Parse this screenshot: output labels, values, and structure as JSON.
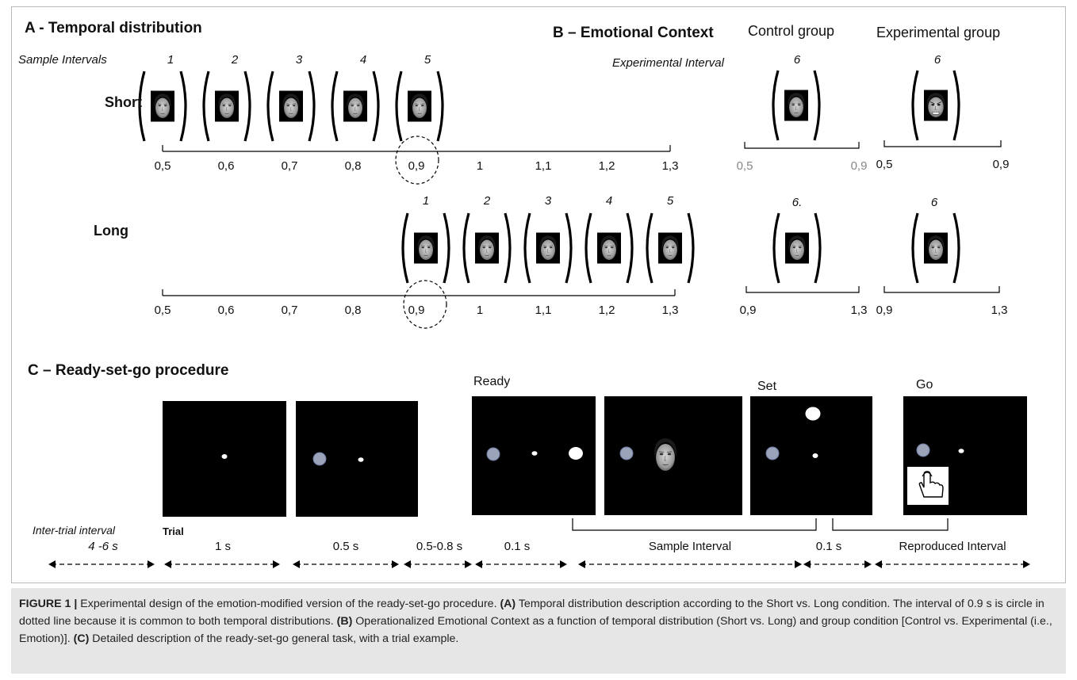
{
  "panelA": {
    "letter": "A",
    "title": " - Temporal distribution",
    "sample_intervals_label": "Sample Intervals",
    "short_label": "Short",
    "long_label": "Long",
    "short_numbers": [
      "1",
      "2",
      "3",
      "4",
      "5"
    ],
    "long_numbers": [
      "1",
      "2",
      "3",
      "4",
      "5"
    ],
    "ticks": [
      "0,5",
      "0,6",
      "0,7",
      "0,8",
      "0,9",
      "1",
      "1,1",
      "1,2",
      "1,3"
    ]
  },
  "panelB": {
    "letter": "B",
    "title": " – Emotional Context",
    "control_label": "Control group",
    "experimental_label": "Experimental group",
    "experimental_interval_label": "Experimental Interval",
    "control_short_num": "6",
    "experimental_short_num": "6",
    "control_long_num": "6.",
    "experimental_long_num": "6",
    "control_short_ticks": [
      "0,5",
      "0,9"
    ],
    "experimental_short_ticks": [
      "0,5",
      "0,9"
    ],
    "control_long_ticks": [
      "0,9",
      "1,3"
    ],
    "experimental_long_ticks": [
      "0,9",
      "1,3"
    ]
  },
  "panelC": {
    "letter": "C",
    "title": " – Ready-set-go procedure",
    "ready_label": "Ready",
    "set_label": "Set",
    "go_label": "Go",
    "iti_label": "Inter-trial interval",
    "trial_label": "Trial",
    "durations": [
      "4 -6 s",
      "1 s",
      "0.5 s",
      "0.5-0.8 s",
      "0.1 s",
      "Sample Interval",
      "0.1 s",
      "Reproduced Interval"
    ]
  },
  "caption": {
    "lead": "FIGURE 1 |",
    "text1": " Experimental design of the emotion-modified version of the ready-set-go procedure. ",
    "a": "(A)",
    "text2": " Temporal distribution description according to the Short vs. Long condition. The interval of 0.9 s is circle in dotted line because it is common to both temporal distributions. ",
    "b": "(B)",
    "text3": " Operationalized Emotional Context as a function of temporal distribution (Short vs. Long) and group condition [Control vs. Experimental (i.e., Emotion)]. ",
    "c": "(C)",
    "text4": " Detailed description of the ready-set-go general task, with a trial example."
  },
  "colors": {
    "screen": "#000000",
    "ready_disk": "#9aa3b8",
    "caption_bg": "#e6e6e6"
  },
  "icons": {
    "face": "face-photo-icon",
    "hand": "hand-tap-icon"
  }
}
